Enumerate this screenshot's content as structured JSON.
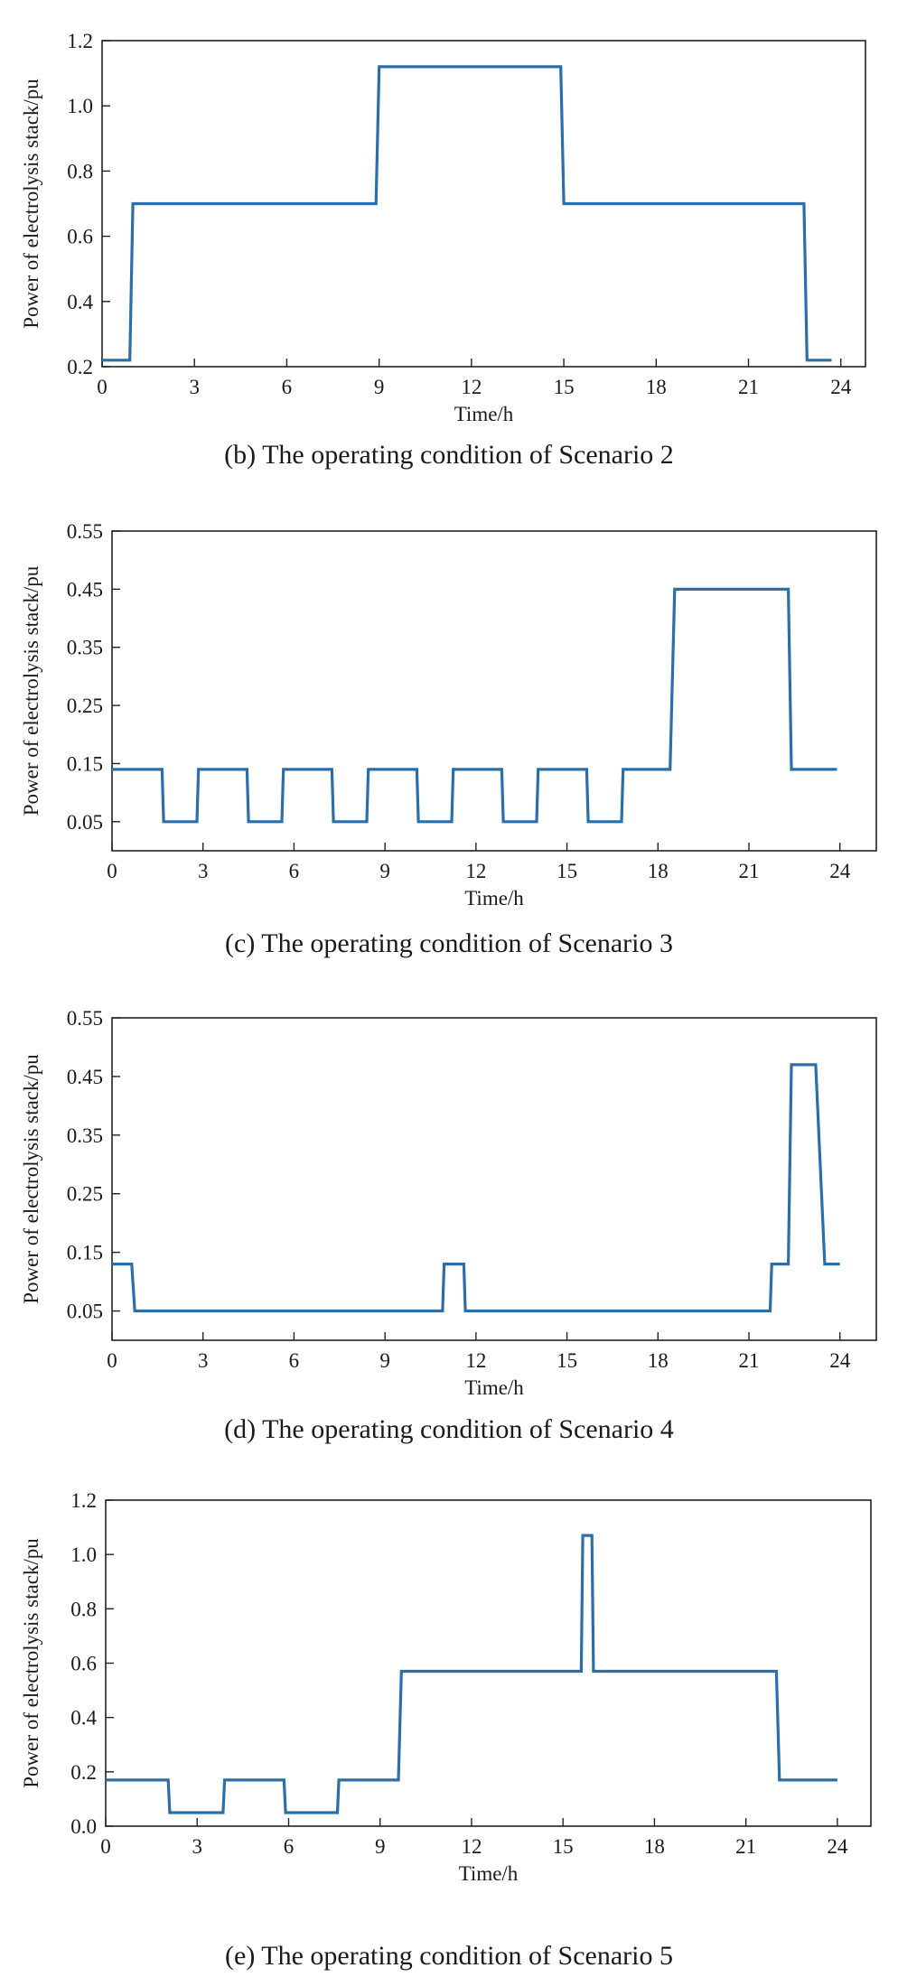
{
  "colors": {
    "series": "#2b6ea8"
  },
  "chart_data": [
    {
      "type": "line",
      "caption": "(b) The operating condition of Scenario 2",
      "xlabel": "Time/h",
      "ylabel": "Power of electrolysis stack/pu",
      "xlim": [
        0,
        24.8
      ],
      "ylim": [
        0.2,
        1.2
      ],
      "xticks": [
        "0",
        "3",
        "6",
        "9",
        "12",
        "15",
        "18",
        "21",
        "24"
      ],
      "yticks": [
        "0.2",
        "0.4",
        "0.6",
        "0.8",
        "1.0",
        "1.2"
      ],
      "series": [
        {
          "x": [
            0,
            0.9,
            1.0,
            8.9,
            9.0,
            14.9,
            15.0,
            22.8,
            22.9,
            23.7
          ],
          "y": [
            0.22,
            0.22,
            0.7,
            0.7,
            1.12,
            1.12,
            0.7,
            0.7,
            0.22,
            0.22
          ]
        }
      ]
    },
    {
      "type": "line",
      "caption": "(c) The operating condition of Scenario 3",
      "xlabel": "Time/h",
      "ylabel": "Power of electrolysis stack/pu",
      "xlim": [
        0,
        25.2
      ],
      "ylim": [
        0,
        0.55
      ],
      "xticks": [
        "0",
        "3",
        "6",
        "9",
        "12",
        "15",
        "18",
        "21",
        "24"
      ],
      "yticks": [
        "0.05",
        "0.15",
        "0.25",
        "0.35",
        "0.45",
        "0.55"
      ],
      "series": [
        {
          "x": [
            0,
            1.65,
            1.7,
            2.8,
            2.85,
            4.45,
            4.5,
            5.6,
            5.65,
            7.25,
            7.3,
            8.4,
            8.45,
            10.05,
            10.1,
            11.2,
            11.25,
            12.85,
            12.9,
            14.0,
            14.05,
            15.65,
            15.7,
            16.8,
            16.85,
            18.4,
            18.55,
            22.3,
            22.4,
            23.9
          ],
          "y": [
            0.14,
            0.14,
            0.05,
            0.05,
            0.14,
            0.14,
            0.05,
            0.05,
            0.14,
            0.14,
            0.05,
            0.05,
            0.14,
            0.14,
            0.05,
            0.05,
            0.14,
            0.14,
            0.05,
            0.05,
            0.14,
            0.14,
            0.05,
            0.05,
            0.14,
            0.14,
            0.45,
            0.45,
            0.14,
            0.14
          ]
        }
      ]
    },
    {
      "type": "line",
      "caption": "(d) The operating condition of Scenario 4",
      "xlabel": "Time/h",
      "ylabel": "Power of electrolysis stack/pu",
      "xlim": [
        0,
        25.2
      ],
      "ylim": [
        0,
        0.55
      ],
      "xticks": [
        "0",
        "3",
        "6",
        "9",
        "12",
        "15",
        "18",
        "21",
        "24"
      ],
      "yticks": [
        "0.05",
        "0.15",
        "0.25",
        "0.35",
        "0.45",
        "0.55"
      ],
      "series": [
        {
          "x": [
            0,
            0.65,
            0.75,
            10.9,
            10.95,
            11.6,
            11.65,
            21.7,
            21.75,
            22.3,
            22.4,
            23.2,
            23.5,
            24.0
          ],
          "y": [
            0.13,
            0.13,
            0.05,
            0.05,
            0.13,
            0.13,
            0.05,
            0.05,
            0.13,
            0.13,
            0.47,
            0.47,
            0.13,
            0.13
          ]
        }
      ]
    },
    {
      "type": "line",
      "caption": "(e) The operating condition of Scenario 5",
      "xlabel": "Time/h",
      "ylabel": "Power of electrolysis stack/pu",
      "xlim": [
        0,
        25.1
      ],
      "ylim": [
        0.0,
        1.2
      ],
      "xticks": [
        "0",
        "3",
        "6",
        "9",
        "12",
        "15",
        "18",
        "21",
        "24"
      ],
      "yticks": [
        "0.0",
        "0.2",
        "0.4",
        "0.6",
        "0.8",
        "1.0",
        "1.2"
      ],
      "series": [
        {
          "x": [
            0,
            2.05,
            2.1,
            3.85,
            3.9,
            5.85,
            5.9,
            7.6,
            7.65,
            9.6,
            9.7,
            15.6,
            15.65,
            15.95,
            16.0,
            22.0,
            22.1,
            24.0
          ],
          "y": [
            0.17,
            0.17,
            0.05,
            0.05,
            0.17,
            0.17,
            0.05,
            0.05,
            0.17,
            0.17,
            0.57,
            0.57,
            1.07,
            1.07,
            0.57,
            0.57,
            0.17,
            0.17
          ]
        }
      ]
    }
  ]
}
